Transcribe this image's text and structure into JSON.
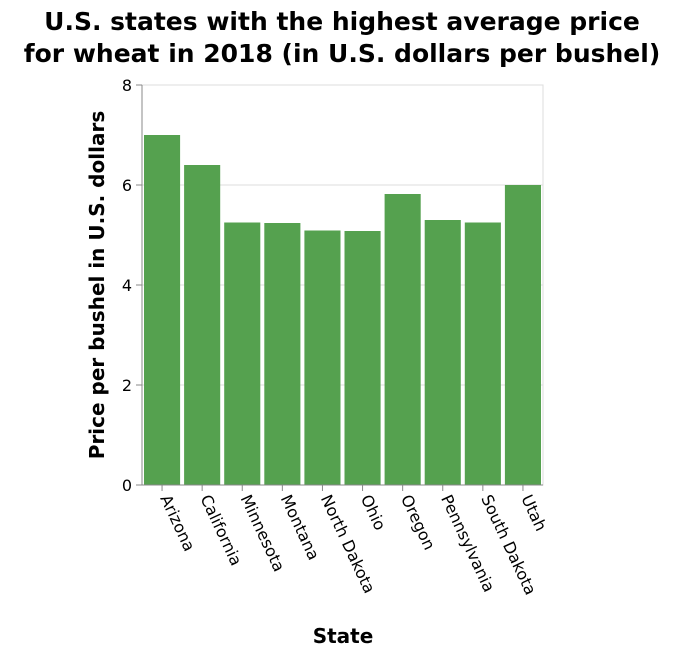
{
  "chart_data": {
    "type": "bar",
    "title_lines": [
      "U.S. states with the highest average price",
      "for wheat in 2018 (in U.S. dollars per bushel)"
    ],
    "xlabel": "State",
    "ylabel": "Price per bushel in U.S. dollars",
    "categories": [
      "Arizona",
      "California",
      "Minnesota",
      "Montana",
      "North Dakota",
      "Ohio",
      "Oregon",
      "Pennsylvania",
      "South Dakota",
      "Utah"
    ],
    "values": [
      7.0,
      6.4,
      5.25,
      5.24,
      5.09,
      5.08,
      5.82,
      5.3,
      5.25,
      6.0
    ],
    "ylim": [
      0,
      8
    ],
    "yticks": [
      0,
      2,
      4,
      6,
      8
    ],
    "grid": true,
    "bar_color": "#55a14f"
  }
}
